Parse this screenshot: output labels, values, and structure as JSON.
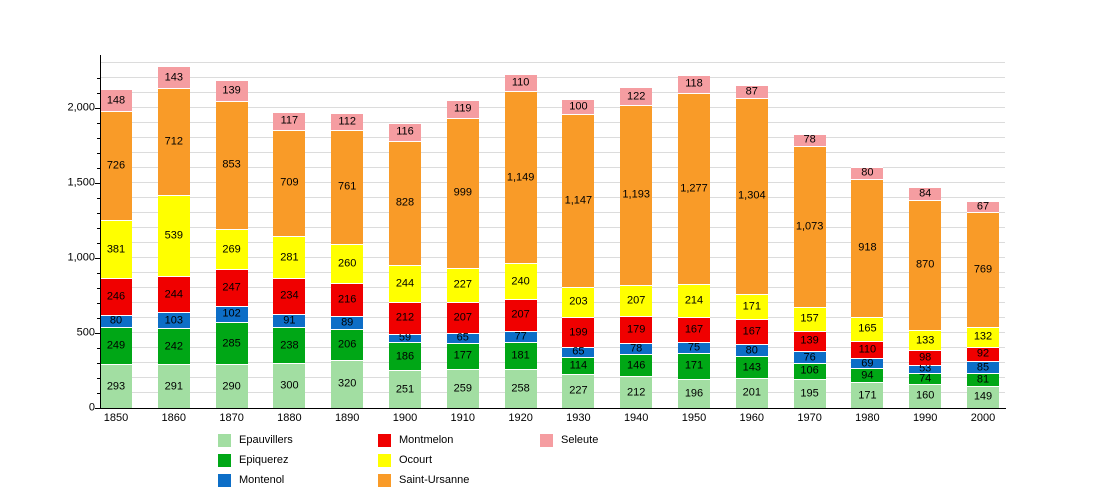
{
  "chart_data": {
    "type": "bar",
    "stacked": true,
    "title": "",
    "xlabel": "",
    "ylabel": "",
    "ylim": [
      0,
      2350
    ],
    "yticks_major": [
      0,
      500,
      1000,
      1500,
      2000
    ],
    "minor_tick_interval": 100,
    "grid": true,
    "grid_interval": 100,
    "legend_position": "bottom",
    "categories": [
      "1850",
      "1860",
      "1870",
      "1880",
      "1890",
      "1900",
      "1910",
      "1920",
      "1930",
      "1940",
      "1950",
      "1960",
      "1970",
      "1980",
      "1990",
      "2000"
    ],
    "series": [
      {
        "name": "Epauvillers",
        "color": "#a2dea2",
        "values": [
          293,
          291,
          290,
          300,
          320,
          251,
          259,
          258,
          227,
          212,
          196,
          201,
          195,
          171,
          160,
          149
        ]
      },
      {
        "name": "Epiquerez",
        "color": "#00a716",
        "values": [
          249,
          242,
          285,
          238,
          206,
          186,
          177,
          181,
          114,
          146,
          171,
          143,
          106,
          94,
          74,
          81
        ]
      },
      {
        "name": "Montenol",
        "color": "#0d6ec7",
        "values": [
          80,
          103,
          102,
          91,
          89,
          59,
          65,
          77,
          65,
          78,
          75,
          80,
          76,
          69,
          53,
          85
        ]
      },
      {
        "name": "Montmelon",
        "color": "#f00000",
        "values": [
          246,
          244,
          247,
          234,
          216,
          212,
          207,
          207,
          199,
          179,
          167,
          167,
          139,
          110,
          98,
          92
        ]
      },
      {
        "name": "Ocourt",
        "color": "#ffff00",
        "values": [
          381,
          539,
          269,
          281,
          260,
          244,
          227,
          240,
          203,
          207,
          214,
          171,
          157,
          165,
          133,
          132
        ]
      },
      {
        "name": "Saint-Ursanne",
        "color": "#f99b28",
        "values": [
          726,
          712,
          853,
          709,
          761,
          828,
          999,
          1149,
          1147,
          1193,
          1277,
          1304,
          1073,
          918,
          870,
          769
        ]
      },
      {
        "name": "Seleute",
        "color": "#f59da1",
        "values": [
          148,
          143,
          139,
          117,
          112,
          116,
          119,
          110,
          100,
          122,
          118,
          87,
          78,
          80,
          84,
          67
        ]
      }
    ],
    "legend_columns_x": [
      218,
      378,
      540
    ],
    "legend_rows_per_column": 3
  }
}
